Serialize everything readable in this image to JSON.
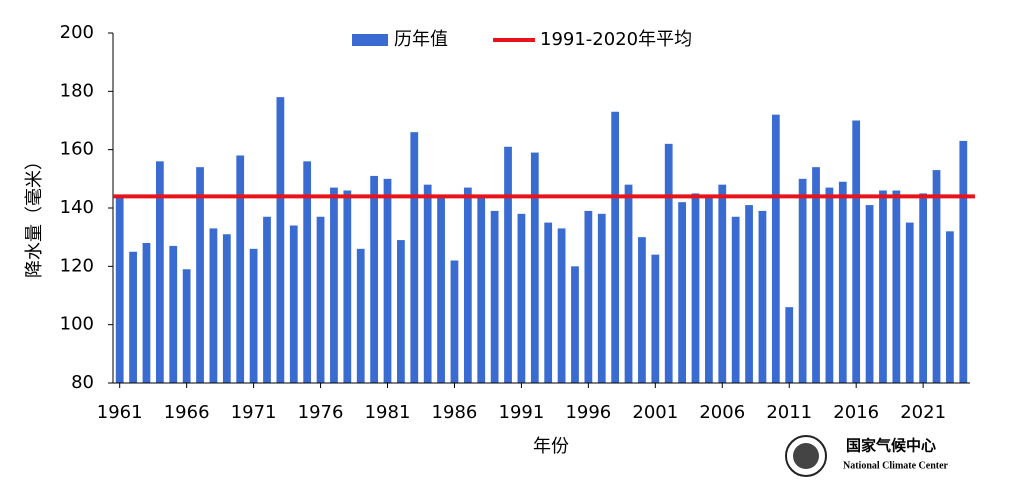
{
  "chart_data": {
    "type": "bar",
    "x_label": "年份",
    "y_label": "降水量（毫米）",
    "x": [
      1961,
      1962,
      1963,
      1964,
      1965,
      1966,
      1967,
      1968,
      1969,
      1970,
      1971,
      1972,
      1973,
      1974,
      1975,
      1976,
      1977,
      1978,
      1979,
      1980,
      1981,
      1982,
      1983,
      1984,
      1985,
      1986,
      1987,
      1988,
      1989,
      1990,
      1991,
      1992,
      1993,
      1994,
      1995,
      1996,
      1997,
      1998,
      1999,
      2000,
      2001,
      2002,
      2003,
      2004,
      2005,
      2006,
      2007,
      2008,
      2009,
      2010,
      2011,
      2012,
      2013,
      2014,
      2015,
      2016,
      2017,
      2018,
      2019,
      2020,
      2021,
      2022,
      2023,
      2024
    ],
    "series": [
      {
        "name": "历年值",
        "color": "#3a6bd0",
        "values": [
          144,
          125,
          128,
          156,
          127,
          119,
          154,
          133,
          131,
          158,
          126,
          137,
          178,
          134,
          156,
          137,
          147,
          146,
          126,
          151,
          150,
          129,
          166,
          148,
          144,
          122,
          147,
          144,
          139,
          161,
          138,
          159,
          135,
          133,
          120,
          139,
          138,
          173,
          148,
          130,
          124,
          162,
          142,
          145,
          144,
          148,
          137,
          141,
          139,
          172,
          106,
          150,
          154,
          147,
          149,
          170,
          141,
          146,
          146,
          135,
          145,
          153,
          132,
          163
        ]
      }
    ],
    "reference_line": {
      "name": "1991-2020年平均",
      "color": "#e8141b",
      "value": 144
    },
    "xlim": [
      1960.5,
      2024.5
    ],
    "xticks": [
      1961,
      1966,
      1971,
      1976,
      1981,
      1986,
      1991,
      1996,
      2001,
      2006,
      2011,
      2016,
      2021
    ],
    "ylim": [
      80,
      200
    ],
    "yticks": [
      80,
      100,
      120,
      140,
      160,
      180,
      200
    ],
    "grid": false
  },
  "logo": {
    "title": "国家气候中心",
    "subtitle": "National Climate Center"
  }
}
